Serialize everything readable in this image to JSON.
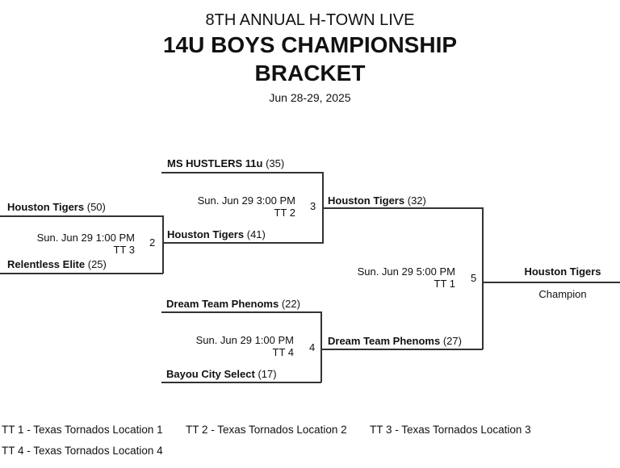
{
  "header": {
    "line1": "8TH ANNUAL H-TOWN LIVE",
    "line2": "14U BOYS CHAMPIONSHIP",
    "line3": "BRACKET",
    "dates": "Jun 28-29, 2025"
  },
  "games": {
    "g2": {
      "number": "2",
      "time": "Sun. Jun 29 1:00 PM",
      "location": "TT 3",
      "top": {
        "team": "Houston Tigers",
        "score": "(50)"
      },
      "bottom": {
        "team": "Relentless Elite",
        "score": "(25)"
      }
    },
    "g3": {
      "number": "3",
      "time": "Sun. Jun 29 3:00 PM",
      "location": "TT 2",
      "top": {
        "team": "MS HUSTLERS 11u",
        "score": "(35)"
      },
      "bottom": {
        "team": "Houston Tigers",
        "score": "(41)"
      }
    },
    "g4": {
      "number": "4",
      "time": "Sun. Jun 29 1:00 PM",
      "location": "TT 4",
      "top": {
        "team": "Dream Team Phenoms",
        "score": "(22)"
      },
      "bottom": {
        "team": "Bayou City Select",
        "score": "(17)"
      }
    },
    "g5": {
      "number": "5",
      "time": "Sun. Jun 29 5:00 PM",
      "location": "TT 1",
      "top": {
        "team": "Houston Tigers",
        "score": "(32)"
      },
      "bottom": {
        "team": "Dream Team Phenoms",
        "score": "(27)"
      }
    }
  },
  "champion": {
    "team": "Houston Tigers",
    "label": "Champion"
  },
  "legend": [
    "TT 1 - Texas Tornados Location 1",
    "TT 2 - Texas Tornados Location 2",
    "TT 3 - Texas Tornados Location 3",
    "TT 4 - Texas Tornados Location 4"
  ]
}
